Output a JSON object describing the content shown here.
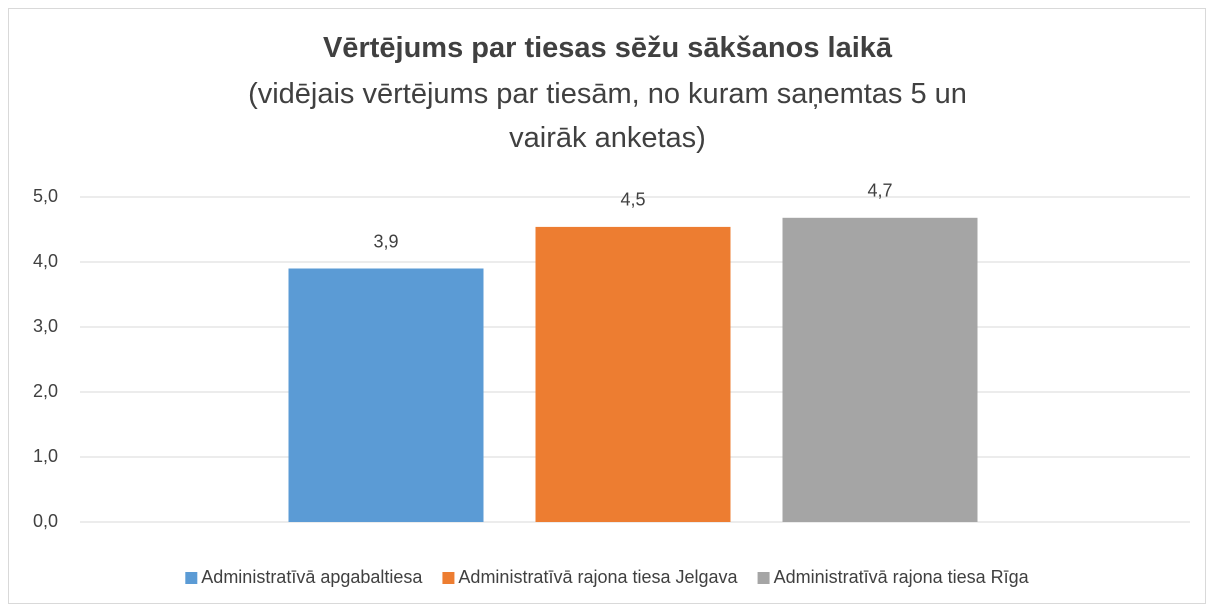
{
  "chart_data": {
    "type": "bar",
    "title": "Vērtējums par tiesas sēžu sākšanos laikā",
    "subtitle": "(vidējais vērtējums par tiesām, no kuram saņemtas 5 un vairāk anketas)",
    "series": [
      {
        "name": "Administratīvā apgabaltiesa",
        "color": "#5b9bd5",
        "values": [
          3.9
        ],
        "value_labels": [
          "3,9"
        ]
      },
      {
        "name": "Administratīvā rajona tiesa Jelgava",
        "color": "#ed7d31",
        "values": [
          4.54
        ],
        "value_labels": [
          "4,5"
        ]
      },
      {
        "name": "Administratīvā rajona tiesa Rīga",
        "color": "#a5a5a5",
        "values": [
          4.68
        ],
        "value_labels": [
          "4,7"
        ]
      }
    ],
    "ylim": [
      0,
      5
    ],
    "yticks": [
      {
        "value": 0,
        "label": "0,0"
      },
      {
        "value": 1,
        "label": "1,0"
      },
      {
        "value": 2,
        "label": "2,0"
      },
      {
        "value": 3,
        "label": "3,0"
      },
      {
        "value": 4,
        "label": "4,0"
      },
      {
        "value": 5,
        "label": "5,0"
      }
    ],
    "grid": true,
    "legend": "bottom"
  }
}
